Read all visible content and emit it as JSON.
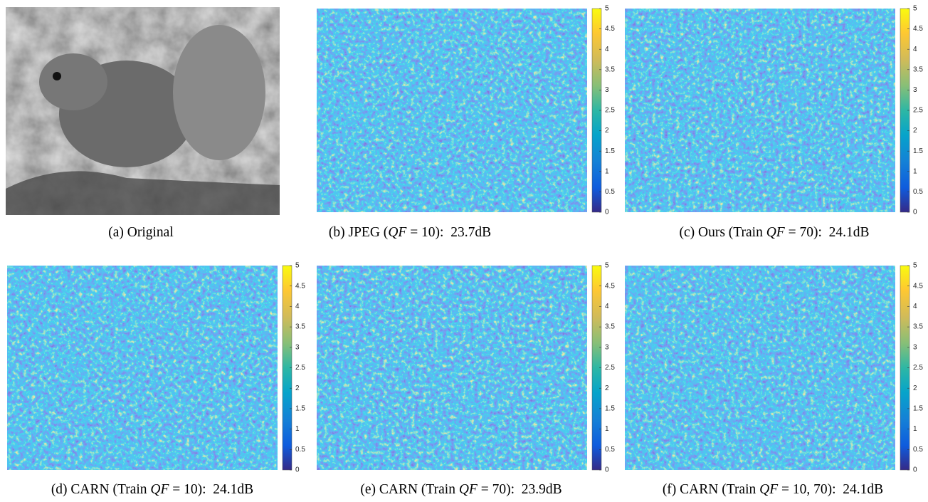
{
  "panels": [
    {
      "caption_parts": [
        "(a) Original"
      ]
    },
    {
      "caption_parts": [
        "(b) JPEG (",
        "QF",
        " = 10):  23.7dB"
      ]
    },
    {
      "caption_parts": [
        "(c) Ours (Train ",
        "QF",
        " = 70):  24.1dB"
      ]
    },
    {
      "caption_parts": [
        "(d) CARN (Train ",
        "QF",
        " = 10):  24.1dB"
      ]
    },
    {
      "caption_parts": [
        "(e) CARN (Train ",
        "QF",
        " = 70):  23.9dB"
      ]
    },
    {
      "caption_parts": [
        "(f) CARN (Train ",
        "QF",
        " = 10, 70):  24.1dB"
      ]
    }
  ],
  "colorbar": {
    "lim": [
      0,
      5
    ],
    "ticks": [
      0,
      0.5,
      1,
      1.5,
      2,
      2.5,
      3,
      3.5,
      4,
      4.5,
      5
    ]
  }
}
